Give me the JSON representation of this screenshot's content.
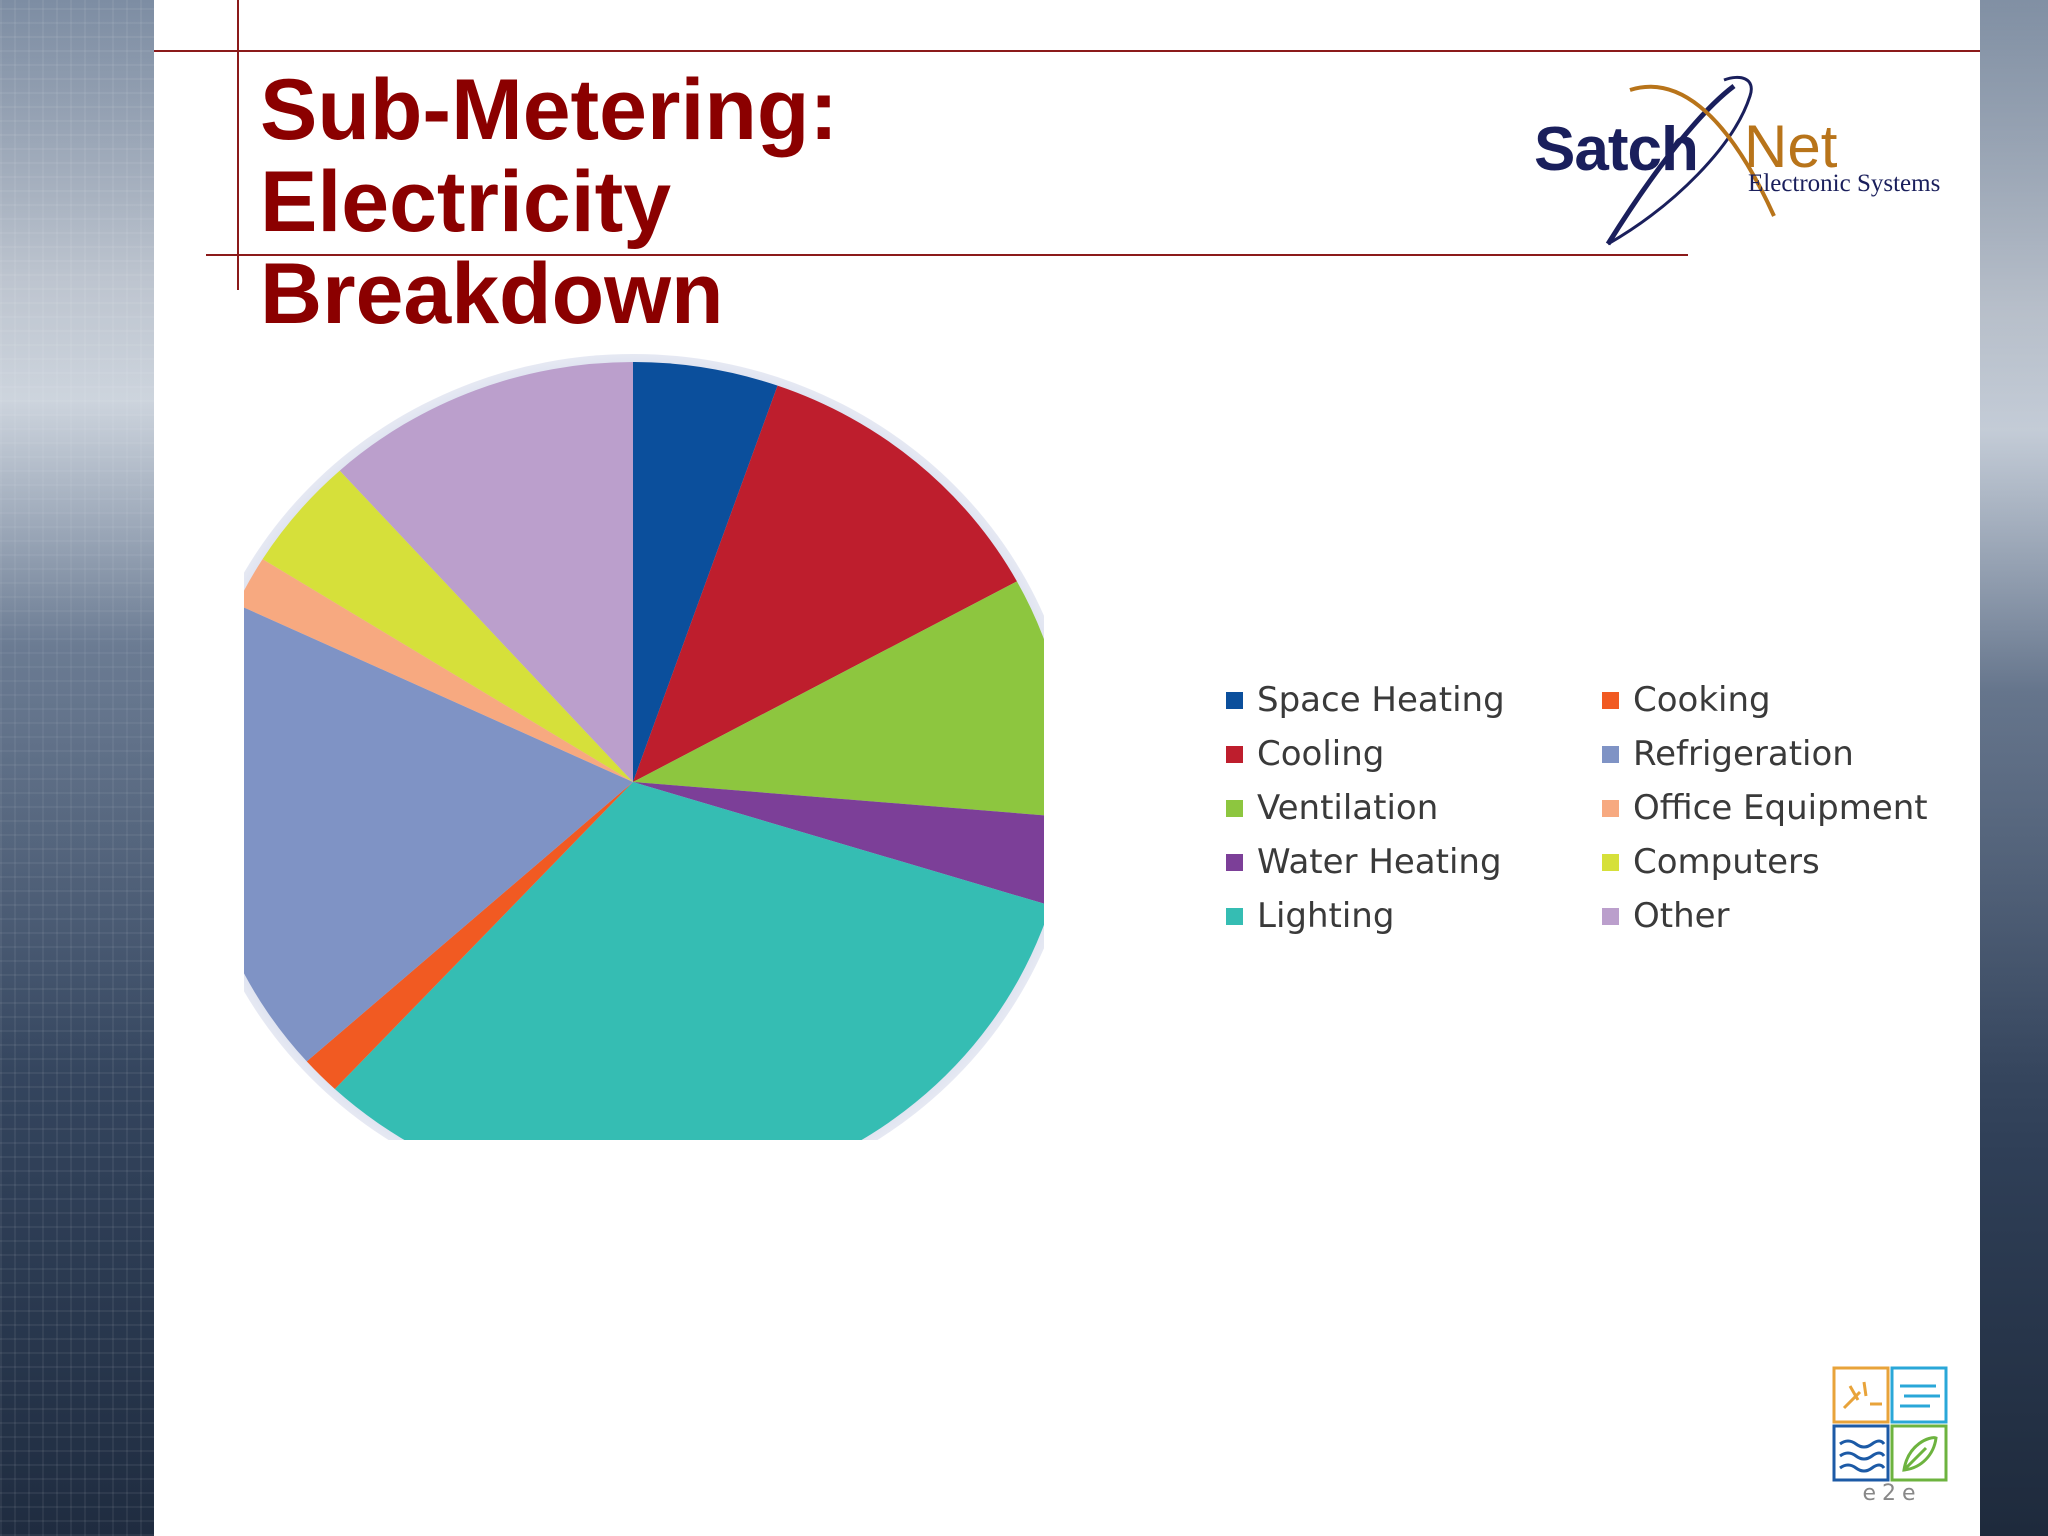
{
  "slide": {
    "title_lines": [
      "Sub-Metering: Electricity",
      "Breakdown"
    ]
  },
  "logo": {
    "word_left": "Satch",
    "word_right": "Net",
    "tagline": "Electronic Systems"
  },
  "badge": {
    "text": "e2e",
    "icons": [
      "sun-icon",
      "wind-icon",
      "water-icon",
      "leaf-icon"
    ]
  },
  "chart_data": {
    "type": "pie",
    "title": "",
    "legend_position": "right",
    "start_angle_deg": 0,
    "direction": "clockwise",
    "categories": [
      "Space Heating",
      "Cooling",
      "Ventilation",
      "Water Heating",
      "Lighting",
      "Cooking",
      "Refrigeration",
      "Office Equipment",
      "Computers",
      "Other"
    ],
    "values": [
      5.5,
      12,
      9.5,
      3.5,
      33,
      1.5,
      19,
      2,
      4.5,
      12
    ],
    "colors": [
      "#0b4f9c",
      "#be1e2d",
      "#8dc63f",
      "#7c3f98",
      "#35bdb3",
      "#f15a22",
      "#7f93c5",
      "#f7a980",
      "#d6e03a",
      "#bb9fcc"
    ],
    "legend_order": [
      "Space Heating",
      "Cooking",
      "Cooling",
      "Refrigeration",
      "Ventilation",
      "Office Equipment",
      "Water Heating",
      "Computers",
      "Lighting",
      "Other"
    ]
  }
}
